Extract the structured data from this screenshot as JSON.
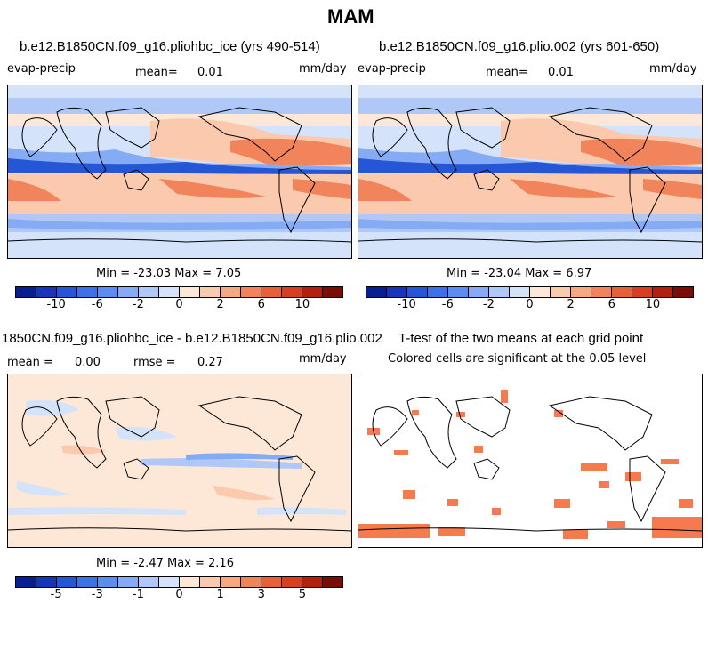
{
  "suptitle": "MAM",
  "panels": {
    "p1": {
      "title": "b.e12.B1850CN.f09_g16.pliohbc_ice (yrs 490-514)",
      "var": "evap-precip",
      "mean_label": "mean=",
      "mean_value": "0.01",
      "units": "mm/day",
      "stats": "Min = -23.03 Max =   7.05"
    },
    "p2": {
      "title": "b.e12.B1850CN.f09_g16.plio.002 (yrs 601-650)",
      "var": "evap-precip",
      "mean_label": "mean=",
      "mean_value": "0.01",
      "units": "mm/day",
      "stats": "Min = -23.04 Max =   6.97"
    },
    "p3": {
      "title": "1850CN.f09_g16.pliohbc_ice - b.e12.B1850CN.f09_g16.plio.002",
      "mean_label": "mean =",
      "mean_value": "0.00",
      "rmse_label": "rmse =",
      "rmse_value": "0.27",
      "units": "mm/day",
      "stats": "Min = -2.47 Max =   2.16"
    },
    "p4": {
      "title": "T-test of the two means at each grid point",
      "subtitle": "Colored cells are significant at the 0.05 level"
    }
  },
  "colorbar_colors": [
    "#0a1f8f",
    "#1536b8",
    "#2456d6",
    "#3d72e6",
    "#5b8ef0",
    "#86abf5",
    "#b0c8f8",
    "#d4e3fa",
    "#fde8d8",
    "#fbcaae",
    "#f6a881",
    "#f1845a",
    "#e8603a",
    "#d83e1f",
    "#b3200e",
    "#7a0d05"
  ],
  "colorbar_top": {
    "ticks": [
      "-10",
      "-6",
      "-2",
      "0",
      "2",
      "6",
      "10"
    ]
  },
  "colorbar_diff": {
    "ticks": [
      "-5",
      "-3",
      "-1",
      "0",
      "1",
      "3",
      "5"
    ]
  },
  "significant_color": "#f57a4e"
}
